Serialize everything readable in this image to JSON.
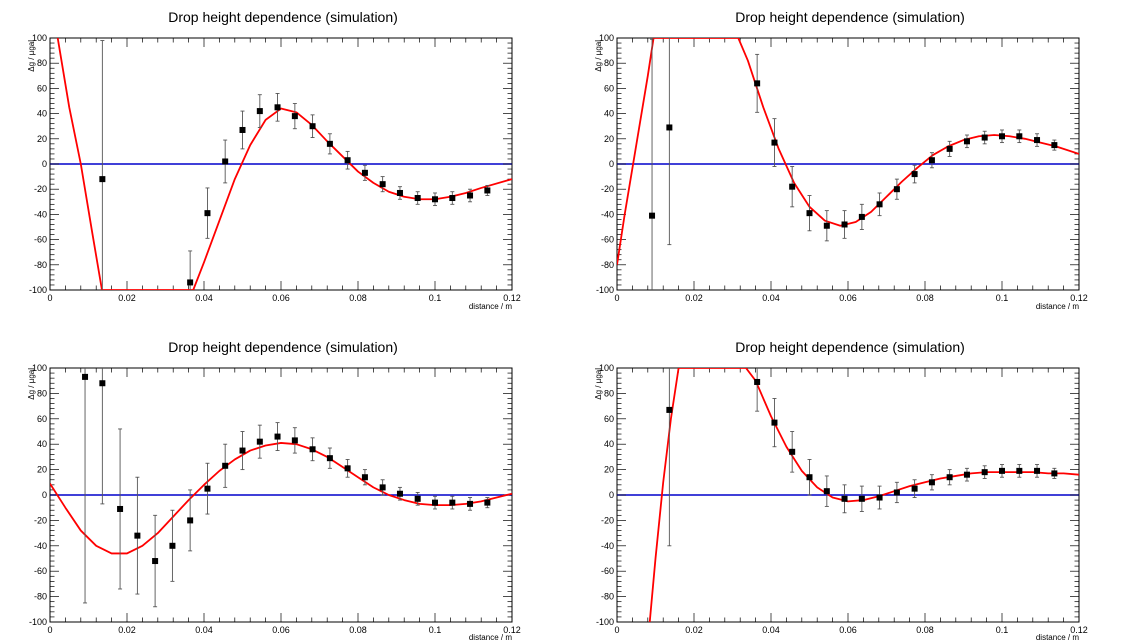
{
  "colors": {
    "fit": "#ff0000",
    "zero_line": "#0000cc",
    "points": "#000000",
    "error_bars": "#555555",
    "frame": "#000000"
  },
  "chart_data": [
    {
      "type": "scatter",
      "title": "Drop height dependence (simulation)",
      "xlabel": "distance / m",
      "ylabel": "Δg / µgal",
      "xlim": [
        0,
        0.12
      ],
      "ylim": [
        -100,
        100
      ],
      "x_ticks": [
        "0",
        "0.02",
        "0.04",
        "0.06",
        "0.08",
        "0.1",
        "0.12"
      ],
      "y_ticks": [
        "-100",
        "-80",
        "-60",
        "-40",
        "-20",
        "0",
        "20",
        "40",
        "60",
        "80",
        "100"
      ],
      "grid": false,
      "reference_line_y": 0,
      "points": [
        {
          "x": 0.0136,
          "y": -12,
          "err": 110
        },
        {
          "x": 0.0364,
          "y": -94,
          "err": 25
        },
        {
          "x": 0.0409,
          "y": -39,
          "err": 20
        },
        {
          "x": 0.0455,
          "y": 2,
          "err": 17
        },
        {
          "x": 0.05,
          "y": 27,
          "err": 15
        },
        {
          "x": 0.0545,
          "y": 42,
          "err": 13
        },
        {
          "x": 0.0591,
          "y": 45,
          "err": 11
        },
        {
          "x": 0.0636,
          "y": 38,
          "err": 10
        },
        {
          "x": 0.0682,
          "y": 30,
          "err": 9
        },
        {
          "x": 0.0727,
          "y": 16,
          "err": 8
        },
        {
          "x": 0.0773,
          "y": 3,
          "err": 7
        },
        {
          "x": 0.0818,
          "y": -7,
          "err": 6
        },
        {
          "x": 0.0864,
          "y": -16,
          "err": 6
        },
        {
          "x": 0.0909,
          "y": -23,
          "err": 5
        },
        {
          "x": 0.0955,
          "y": -27,
          "err": 5
        },
        {
          "x": 0.1,
          "y": -28,
          "err": 5
        },
        {
          "x": 0.1045,
          "y": -27,
          "err": 5
        },
        {
          "x": 0.1091,
          "y": -25,
          "err": 5
        },
        {
          "x": 0.1136,
          "y": -21,
          "err": 4
        }
      ],
      "fit_curve": [
        [
          0.002,
          100
        ],
        [
          0.005,
          45
        ],
        [
          0.008,
          0
        ],
        [
          0.011,
          -55
        ],
        [
          0.0135,
          -100
        ],
        [
          0.0372,
          -100
        ],
        [
          0.04,
          -78
        ],
        [
          0.044,
          -45
        ],
        [
          0.048,
          -12
        ],
        [
          0.052,
          15
        ],
        [
          0.056,
          35
        ],
        [
          0.06,
          44
        ],
        [
          0.064,
          41
        ],
        [
          0.068,
          31
        ],
        [
          0.072,
          18
        ],
        [
          0.076,
          6
        ],
        [
          0.08,
          -6
        ],
        [
          0.084,
          -15
        ],
        [
          0.088,
          -22
        ],
        [
          0.092,
          -26
        ],
        [
          0.096,
          -28
        ],
        [
          0.1,
          -28
        ],
        [
          0.104,
          -26
        ],
        [
          0.108,
          -23
        ],
        [
          0.112,
          -19
        ],
        [
          0.12,
          -12
        ]
      ]
    },
    {
      "type": "scatter",
      "title": "Drop height dependence (simulation)",
      "xlabel": "distance / m",
      "ylabel": "Δg / µgal",
      "xlim": [
        0,
        0.12
      ],
      "ylim": [
        -100,
        100
      ],
      "x_ticks": [
        "0",
        "0.02",
        "0.04",
        "0.06",
        "0.08",
        "0.1",
        "0.12"
      ],
      "y_ticks": [
        "-100",
        "-80",
        "-60",
        "-40",
        "-20",
        "0",
        "20",
        "40",
        "60",
        "80",
        "100"
      ],
      "grid": false,
      "reference_line_y": 0,
      "points": [
        {
          "x": 0.0091,
          "y": -41,
          "err": 140
        },
        {
          "x": 0.0136,
          "y": 29,
          "err": 93
        },
        {
          "x": 0.0364,
          "y": 64,
          "err": 23
        },
        {
          "x": 0.0409,
          "y": 17,
          "err": 19
        },
        {
          "x": 0.0455,
          "y": -18,
          "err": 16
        },
        {
          "x": 0.05,
          "y": -39,
          "err": 14
        },
        {
          "x": 0.0545,
          "y": -49,
          "err": 12
        },
        {
          "x": 0.0591,
          "y": -48,
          "err": 11
        },
        {
          "x": 0.0636,
          "y": -42,
          "err": 10
        },
        {
          "x": 0.0682,
          "y": -32,
          "err": 9
        },
        {
          "x": 0.0727,
          "y": -20,
          "err": 8
        },
        {
          "x": 0.0773,
          "y": -8,
          "err": 7
        },
        {
          "x": 0.0818,
          "y": 3,
          "err": 6
        },
        {
          "x": 0.0864,
          "y": 12,
          "err": 6
        },
        {
          "x": 0.0909,
          "y": 18,
          "err": 5
        },
        {
          "x": 0.0955,
          "y": 21,
          "err": 5
        },
        {
          "x": 0.1,
          "y": 22,
          "err": 5
        },
        {
          "x": 0.1045,
          "y": 22,
          "err": 5
        },
        {
          "x": 0.1091,
          "y": 19,
          "err": 5
        },
        {
          "x": 0.1136,
          "y": 15,
          "err": 4
        }
      ],
      "fit_curve": [
        [
          0,
          -80
        ],
        [
          0.002,
          -40
        ],
        [
          0.005,
          15
        ],
        [
          0.008,
          70
        ],
        [
          0.0095,
          100
        ],
        [
          0.0315,
          100
        ],
        [
          0.034,
          82
        ],
        [
          0.038,
          45
        ],
        [
          0.042,
          12
        ],
        [
          0.046,
          -15
        ],
        [
          0.05,
          -34
        ],
        [
          0.054,
          -45
        ],
        [
          0.058,
          -49
        ],
        [
          0.062,
          -46
        ],
        [
          0.066,
          -38
        ],
        [
          0.07,
          -26
        ],
        [
          0.074,
          -14
        ],
        [
          0.078,
          -3
        ],
        [
          0.082,
          7
        ],
        [
          0.086,
          14
        ],
        [
          0.09,
          19
        ],
        [
          0.094,
          22
        ],
        [
          0.098,
          23
        ],
        [
          0.102,
          22
        ],
        [
          0.106,
          20
        ],
        [
          0.11,
          17
        ],
        [
          0.114,
          14
        ],
        [
          0.12,
          8
        ]
      ]
    },
    {
      "type": "scatter",
      "title": "Drop height dependence (simulation)",
      "xlabel": "distance / m",
      "ylabel": "Δg / µgal",
      "xlim": [
        0,
        0.12
      ],
      "ylim": [
        -100,
        100
      ],
      "x_ticks": [
        "0",
        "0.02",
        "0.04",
        "0.06",
        "0.08",
        "0.1",
        "0.12"
      ],
      "y_ticks": [
        "-100",
        "-80",
        "-60",
        "-40",
        "-20",
        "0",
        "20",
        "40",
        "60",
        "80",
        "100"
      ],
      "grid": false,
      "reference_line_y": 0,
      "points": [
        {
          "x": 0.0091,
          "y": 93,
          "err": 178
        },
        {
          "x": 0.0136,
          "y": 88,
          "err": 95
        },
        {
          "x": 0.0182,
          "y": -11,
          "err": 63
        },
        {
          "x": 0.0227,
          "y": -32,
          "err": 46
        },
        {
          "x": 0.0273,
          "y": -52,
          "err": 36
        },
        {
          "x": 0.0318,
          "y": -40,
          "err": 28
        },
        {
          "x": 0.0364,
          "y": -20,
          "err": 24
        },
        {
          "x": 0.0409,
          "y": 5,
          "err": 20
        },
        {
          "x": 0.0455,
          "y": 23,
          "err": 17
        },
        {
          "x": 0.05,
          "y": 35,
          "err": 15
        },
        {
          "x": 0.0545,
          "y": 42,
          "err": 13
        },
        {
          "x": 0.0591,
          "y": 46,
          "err": 11
        },
        {
          "x": 0.0636,
          "y": 43,
          "err": 10
        },
        {
          "x": 0.0682,
          "y": 36,
          "err": 9
        },
        {
          "x": 0.0727,
          "y": 29,
          "err": 8
        },
        {
          "x": 0.0773,
          "y": 21,
          "err": 7
        },
        {
          "x": 0.0818,
          "y": 14,
          "err": 6
        },
        {
          "x": 0.0864,
          "y": 6,
          "err": 6
        },
        {
          "x": 0.0909,
          "y": 1,
          "err": 5
        },
        {
          "x": 0.0955,
          "y": -3,
          "err": 5
        },
        {
          "x": 0.1,
          "y": -6,
          "err": 5
        },
        {
          "x": 0.1045,
          "y": -6,
          "err": 5
        },
        {
          "x": 0.1091,
          "y": -7,
          "err": 5
        },
        {
          "x": 0.1136,
          "y": -6,
          "err": 4
        }
      ],
      "fit_curve": [
        [
          0,
          9
        ],
        [
          0.004,
          -10
        ],
        [
          0.008,
          -28
        ],
        [
          0.012,
          -40
        ],
        [
          0.016,
          -46
        ],
        [
          0.02,
          -46
        ],
        [
          0.024,
          -40
        ],
        [
          0.028,
          -30
        ],
        [
          0.032,
          -17
        ],
        [
          0.036,
          -4
        ],
        [
          0.04,
          8
        ],
        [
          0.044,
          19
        ],
        [
          0.048,
          28
        ],
        [
          0.052,
          35
        ],
        [
          0.056,
          39
        ],
        [
          0.06,
          41
        ],
        [
          0.064,
          40
        ],
        [
          0.068,
          36
        ],
        [
          0.072,
          30
        ],
        [
          0.076,
          22
        ],
        [
          0.08,
          14
        ],
        [
          0.084,
          6
        ],
        [
          0.088,
          0
        ],
        [
          0.092,
          -4
        ],
        [
          0.096,
          -7
        ],
        [
          0.1,
          -8
        ],
        [
          0.104,
          -8
        ],
        [
          0.108,
          -7
        ],
        [
          0.112,
          -5
        ],
        [
          0.116,
          -2
        ],
        [
          0.12,
          1
        ]
      ]
    },
    {
      "type": "scatter",
      "title": "Drop height dependence (simulation)",
      "xlabel": "distance / m",
      "ylabel": "Δg / µgal",
      "xlim": [
        0,
        0.12
      ],
      "ylim": [
        -100,
        100
      ],
      "x_ticks": [
        "0",
        "0.02",
        "0.04",
        "0.06",
        "0.08",
        "0.1",
        "0.12"
      ],
      "y_ticks": [
        "-100",
        "-80",
        "-60",
        "-40",
        "-20",
        "0",
        "20",
        "40",
        "60",
        "80",
        "100"
      ],
      "grid": false,
      "reference_line_y": 0,
      "points": [
        {
          "x": 0.0136,
          "y": 67,
          "err": 107
        },
        {
          "x": 0.0364,
          "y": 89,
          "err": 23
        },
        {
          "x": 0.0409,
          "y": 57,
          "err": 19
        },
        {
          "x": 0.0455,
          "y": 34,
          "err": 16
        },
        {
          "x": 0.05,
          "y": 14,
          "err": 14
        },
        {
          "x": 0.0545,
          "y": 3,
          "err": 12
        },
        {
          "x": 0.0591,
          "y": -3,
          "err": 11
        },
        {
          "x": 0.0636,
          "y": -3,
          "err": 10
        },
        {
          "x": 0.0682,
          "y": -2,
          "err": 9
        },
        {
          "x": 0.0727,
          "y": 2,
          "err": 8
        },
        {
          "x": 0.0773,
          "y": 5,
          "err": 7
        },
        {
          "x": 0.0818,
          "y": 10,
          "err": 6
        },
        {
          "x": 0.0864,
          "y": 14,
          "err": 6
        },
        {
          "x": 0.0909,
          "y": 16,
          "err": 5
        },
        {
          "x": 0.0955,
          "y": 18,
          "err": 5
        },
        {
          "x": 0.1,
          "y": 19,
          "err": 5
        },
        {
          "x": 0.1045,
          "y": 19,
          "err": 5
        },
        {
          "x": 0.1091,
          "y": 19,
          "err": 5
        },
        {
          "x": 0.1136,
          "y": 17,
          "err": 4
        }
      ],
      "fit_curve": [
        [
          0.0085,
          -100
        ],
        [
          0.01,
          -50
        ],
        [
          0.012,
          10
        ],
        [
          0.014,
          60
        ],
        [
          0.016,
          100
        ],
        [
          0.0335,
          100
        ],
        [
          0.036,
          90
        ],
        [
          0.04,
          62
        ],
        [
          0.044,
          38
        ],
        [
          0.048,
          19
        ],
        [
          0.052,
          6
        ],
        [
          0.056,
          -2
        ],
        [
          0.06,
          -5
        ],
        [
          0.064,
          -4
        ],
        [
          0.068,
          -1
        ],
        [
          0.072,
          3
        ],
        [
          0.076,
          7
        ],
        [
          0.08,
          10
        ],
        [
          0.084,
          13
        ],
        [
          0.088,
          15
        ],
        [
          0.092,
          17
        ],
        [
          0.096,
          18
        ],
        [
          0.1,
          18
        ],
        [
          0.104,
          18
        ],
        [
          0.108,
          18
        ],
        [
          0.112,
          17
        ],
        [
          0.116,
          17
        ],
        [
          0.12,
          16
        ]
      ]
    }
  ]
}
